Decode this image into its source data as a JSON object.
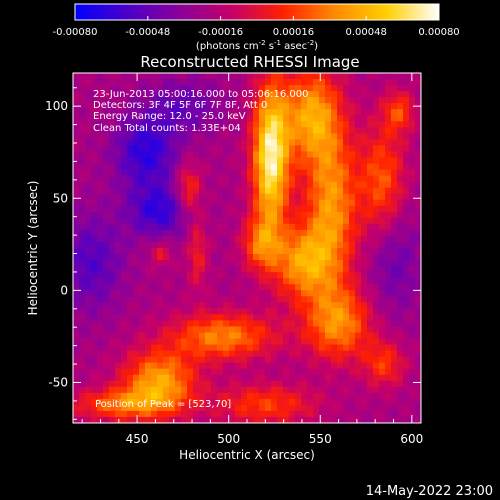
{
  "chart_data": {
    "type": "heatmap",
    "title": "Reconstructed RHESSI Image",
    "xlabel": "Heliocentric X (arcsec)",
    "ylabel": "Heliocentric Y (arcsec)",
    "xlim": [
      415,
      605
    ],
    "ylim": [
      -72,
      118
    ],
    "x_ticks": [
      450,
      500,
      550,
      600
    ],
    "y_ticks": [
      -50,
      0,
      50,
      100
    ],
    "colorbar": {
      "range": [
        -0.0008,
        0.0008
      ],
      "ticks": [
        "-0.00080",
        "-0.00048",
        "-0.00016",
        "0.00016",
        "0.00048",
        "0.00080"
      ],
      "tick_values": [
        -0.0008,
        -0.00048,
        -0.00016,
        0.00016,
        0.00048,
        0.0008
      ],
      "units_prefix": "(photons cm",
      "units_exp1": "-2",
      "units_mid": " s",
      "units_exp2": "-1",
      "units_mid2": " asec",
      "units_exp3": "-2",
      "units_suffix": ")",
      "colormap": [
        "#0000ff",
        "#4b00c8",
        "#8a009a",
        "#c4006a",
        "#ff2000",
        "#ff8a00",
        "#ffd000",
        "#ffffff"
      ]
    },
    "annotations": [
      "23-Jun-2013 05:00:16.000 to 05:06:16.000",
      "Detectors: 3F 4F 5F 6F 7F 8F, Att 0",
      "Energy Range: 12.0 - 25.0 keV",
      "Clean     Total counts: 1.33E+04"
    ],
    "peak_label": "Position of Peak = [523,70]",
    "peak": [
      523,
      70
    ],
    "components": [
      {
        "x": 523,
        "y": 72,
        "sx": 7,
        "sy": 28,
        "amp": 0.00095
      },
      {
        "x": 545,
        "y": 95,
        "sx": 11,
        "sy": 18,
        "amp": 0.00062
      },
      {
        "x": 556,
        "y": 45,
        "sx": 10,
        "sy": 30,
        "amp": 0.0006
      },
      {
        "x": 540,
        "y": 15,
        "sx": 11,
        "sy": 14,
        "amp": 0.00058
      },
      {
        "x": 517,
        "y": 25,
        "sx": 7,
        "sy": 10,
        "amp": 0.00042
      },
      {
        "x": 560,
        "y": -18,
        "sx": 13,
        "sy": 14,
        "amp": 0.00055
      },
      {
        "x": 497,
        "y": -25,
        "sx": 20,
        "sy": 9,
        "amp": 0.00055
      },
      {
        "x": 462,
        "y": -50,
        "sx": 14,
        "sy": 12,
        "amp": 0.00065
      },
      {
        "x": 440,
        "y": -62,
        "sx": 18,
        "sy": 6,
        "amp": 0.00045
      },
      {
        "x": 520,
        "y": -62,
        "sx": 20,
        "sy": 8,
        "amp": 0.00038
      },
      {
        "x": 584,
        "y": 58,
        "sx": 9,
        "sy": 22,
        "amp": 0.00046
      },
      {
        "x": 593,
        "y": 97,
        "sx": 6,
        "sy": 8,
        "amp": 0.00038
      },
      {
        "x": 585,
        "y": -40,
        "sx": 8,
        "sy": 9,
        "amp": 0.00036
      },
      {
        "x": 478,
        "y": 55,
        "sx": 5,
        "sy": 10,
        "amp": 0.00038
      },
      {
        "x": 483,
        "y": 20,
        "sx": 4,
        "sy": 14,
        "amp": 0.00028
      },
      {
        "x": 463,
        "y": 20,
        "sx": 4,
        "sy": 5,
        "amp": 0.00025
      },
      {
        "x": 455,
        "y": 75,
        "sx": 12,
        "sy": 14,
        "amp": -0.00045
      },
      {
        "x": 462,
        "y": 43,
        "sx": 12,
        "sy": 10,
        "amp": -0.00042
      },
      {
        "x": 425,
        "y": 15,
        "sx": 12,
        "sy": 18,
        "amp": -0.00032
      },
      {
        "x": 475,
        "y": 100,
        "sx": 14,
        "sy": 10,
        "amp": -0.00025
      },
      {
        "x": 590,
        "y": 18,
        "sx": 10,
        "sy": 22,
        "amp": -0.00025
      }
    ],
    "baseline": -0.00022,
    "grid": false
  },
  "footer": {
    "date": "14-May-2022 23:00"
  }
}
